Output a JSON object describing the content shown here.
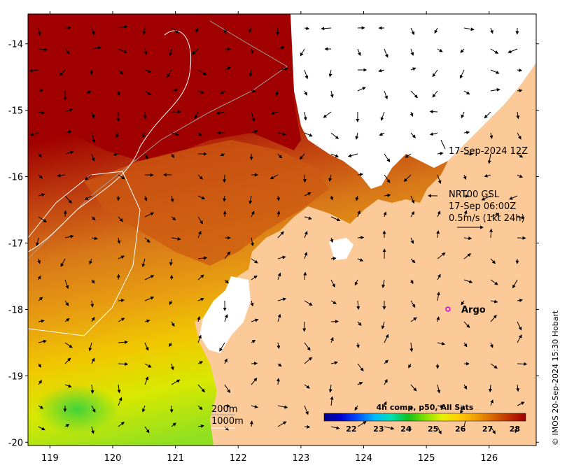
{
  "map": {
    "lat_ticks": [
      "-14",
      "-15",
      "-16",
      "-17",
      "-18",
      "-19",
      "-20"
    ],
    "lon_ticks": [
      "119",
      "120",
      "121",
      "122",
      "123",
      "124",
      "125",
      "126"
    ],
    "lat_range": [
      -20.05,
      -13.55
    ],
    "lon_range": [
      118.65,
      126.75
    ]
  },
  "annotations": {
    "track_time": "17-Sep-2024 12Z",
    "current_source": "NRT00 GSL",
    "current_time": "17-Sep 06:00Z",
    "scale_text": "0.5m/s (1kt 24h)",
    "argo_label": "Argo",
    "isobath_200": "200m",
    "isobath_1000": "1000m",
    "credit": "© IMOS 20-Sep-2024 15:30 Hobart"
  },
  "colorbar": {
    "title": "4h comp, p50, All Sats",
    "labels": [
      "22",
      "23",
      "24",
      "25",
      "26",
      "27",
      "28"
    ],
    "stops": [
      "#00008b",
      "#0000d0",
      "#0050ff",
      "#00b8ff",
      "#00e0b0",
      "#10c020",
      "#80e000",
      "#e6f000",
      "#ffd000",
      "#f0a000",
      "#d86800",
      "#c03000",
      "#9b0000"
    ]
  },
  "colors": {
    "land": "#fcc999",
    "hot_sst": "#a00000",
    "warm_sst": "#d07018",
    "mid_sst": "#e8a010",
    "cool_sst": "#d8e800",
    "coolest_sst": "#40d020",
    "no_data": "#ffffff",
    "argo": "#e000e0"
  }
}
